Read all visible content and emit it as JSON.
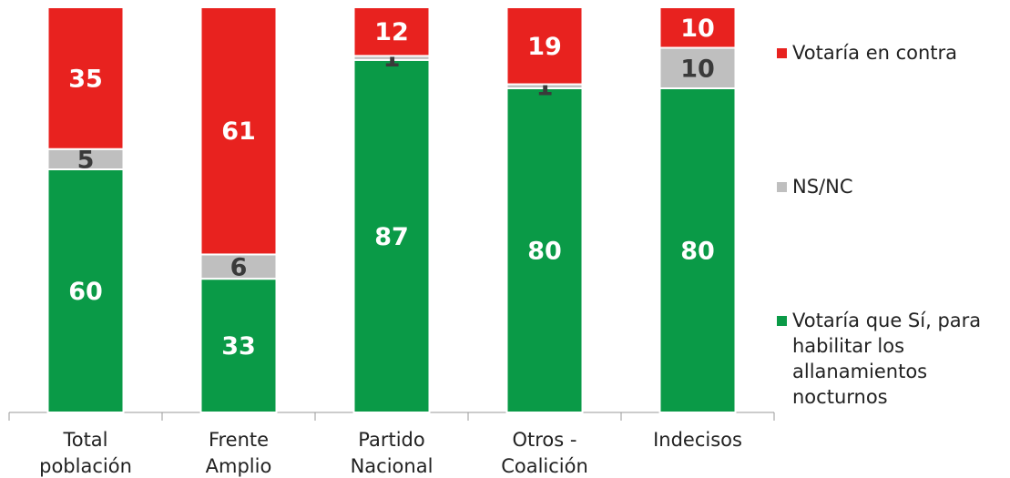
{
  "chart_data": {
    "type": "stacked_bar",
    "categories": [
      [
        "Total",
        "población"
      ],
      [
        "Frente",
        "Amplio"
      ],
      [
        "Partido",
        "Nacional"
      ],
      [
        "Otros -",
        "Coalición"
      ],
      [
        "Indecisos"
      ]
    ],
    "series": [
      {
        "name": "Votaría que Sí, para habilitar los allanamientos nocturnos",
        "color": "#0a9a47",
        "label_color": "#ffffff",
        "values": [
          60,
          33,
          87,
          80,
          80
        ]
      },
      {
        "name": "NS/NC",
        "color": "#bfbfbf",
        "label_color": "#3a3a3a",
        "values": [
          5,
          6,
          1,
          1,
          10
        ]
      },
      {
        "name": "Votaría en contra",
        "color": "#e8221f",
        "label_color": "#ffffff",
        "values": [
          35,
          61,
          12,
          19,
          10
        ]
      }
    ]
  }
}
